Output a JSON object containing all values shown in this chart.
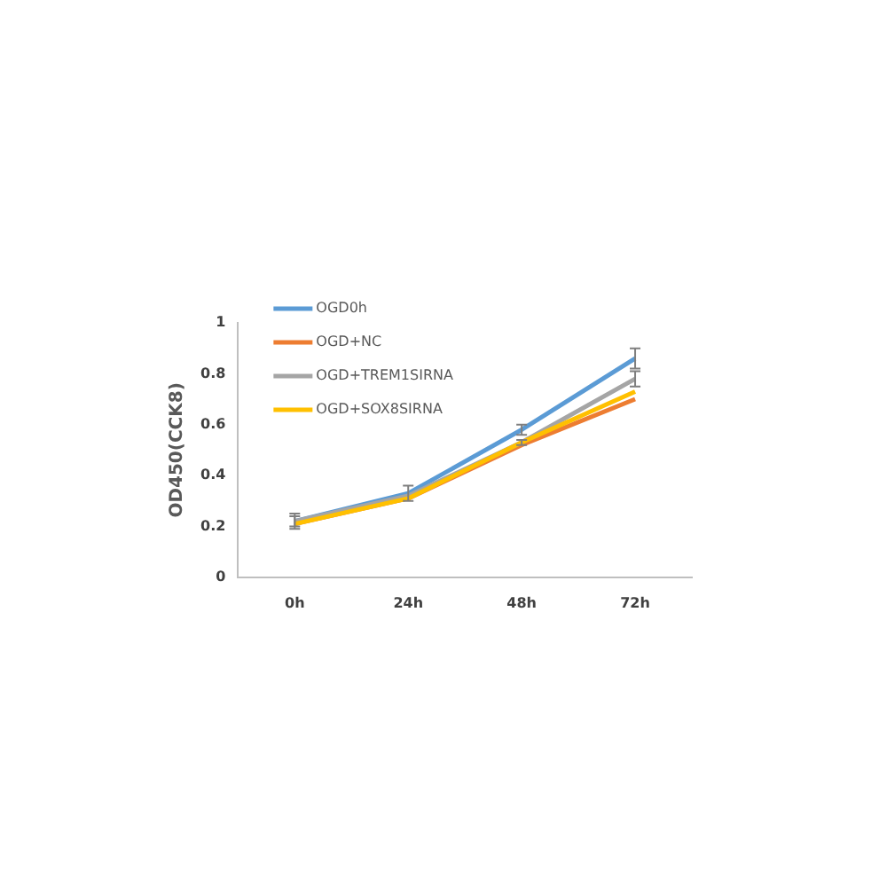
{
  "chart_data": {
    "type": "line",
    "ylabel": "OD450(CCK8)",
    "categories": [
      "0h",
      "24h",
      "48h",
      "72h"
    ],
    "series": [
      {
        "name": "OGD0h",
        "color": "#5b9bd5",
        "values": [
          0.22,
          0.33,
          0.58,
          0.86
        ],
        "errors": [
          0.03,
          0.03,
          0.02,
          0.04
        ]
      },
      {
        "name": "OGD+NC",
        "color": "#ed7d31",
        "values": [
          0.21,
          0.31,
          0.52,
          0.7
        ]
      },
      {
        "name": "OGD+TREM1SIRNA",
        "color": "#a5a5a5",
        "values": [
          0.22,
          0.32,
          0.53,
          0.78
        ],
        "errors": [
          0.02,
          null,
          0.01,
          0.03
        ]
      },
      {
        "name": "OGD+SOX8SIRNA",
        "color": "#ffc000",
        "values": [
          0.21,
          0.31,
          0.53,
          0.73
        ]
      }
    ],
    "ylim": [
      0,
      1
    ],
    "yticks": [
      0,
      0.2,
      0.4,
      0.6,
      0.8,
      1
    ],
    "grid": false,
    "legend": "top left",
    "line_style": "solid"
  }
}
